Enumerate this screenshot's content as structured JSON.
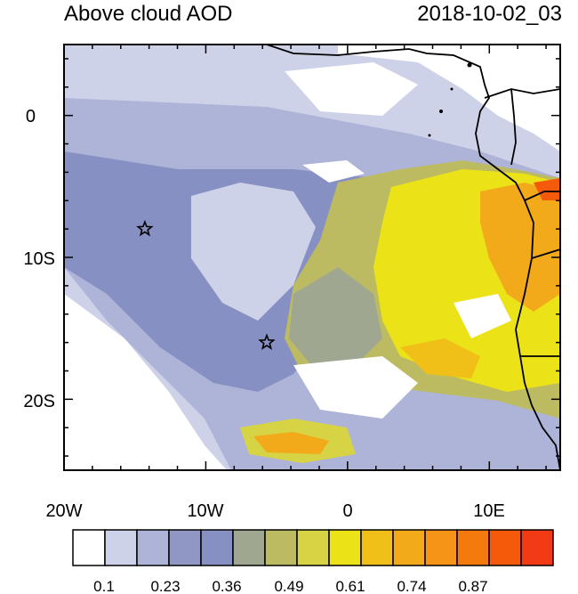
{
  "title": "Above cloud AOD",
  "timestamp": "2018-10-02_03",
  "map": {
    "lon_range": [
      -20,
      15
    ],
    "lat_range": [
      -25,
      5
    ],
    "x_ticks": [
      {
        "lon": -20,
        "label": "20W"
      },
      {
        "lon": -10,
        "label": "10W"
      },
      {
        "lon": 0,
        "label": "0"
      },
      {
        "lon": 10,
        "label": "10E"
      }
    ],
    "y_ticks": [
      {
        "lat": 0,
        "label": "0"
      },
      {
        "lat": -10,
        "label": "10S"
      },
      {
        "lat": -20,
        "label": "20S"
      }
    ],
    "markers": [
      {
        "lon": -14.3,
        "lat": -8.0,
        "symbol": "star"
      },
      {
        "lon": -5.7,
        "lat": -16.0,
        "symbol": "star"
      }
    ]
  },
  "colorbar": {
    "colors": [
      "#ffffff",
      "#ced2e8",
      "#aeb3d8",
      "#9097c4",
      "#8790c2",
      "#a0a790",
      "#bdbb62",
      "#d6d445",
      "#ebe218",
      "#f0c018",
      "#f2aa1a",
      "#f59416",
      "#f57a0e",
      "#f55a0a",
      "#f23a14"
    ],
    "labels": [
      "0.1",
      "0.23",
      "0.36",
      "0.49",
      "0.61",
      "0.74",
      "0.87"
    ]
  }
}
